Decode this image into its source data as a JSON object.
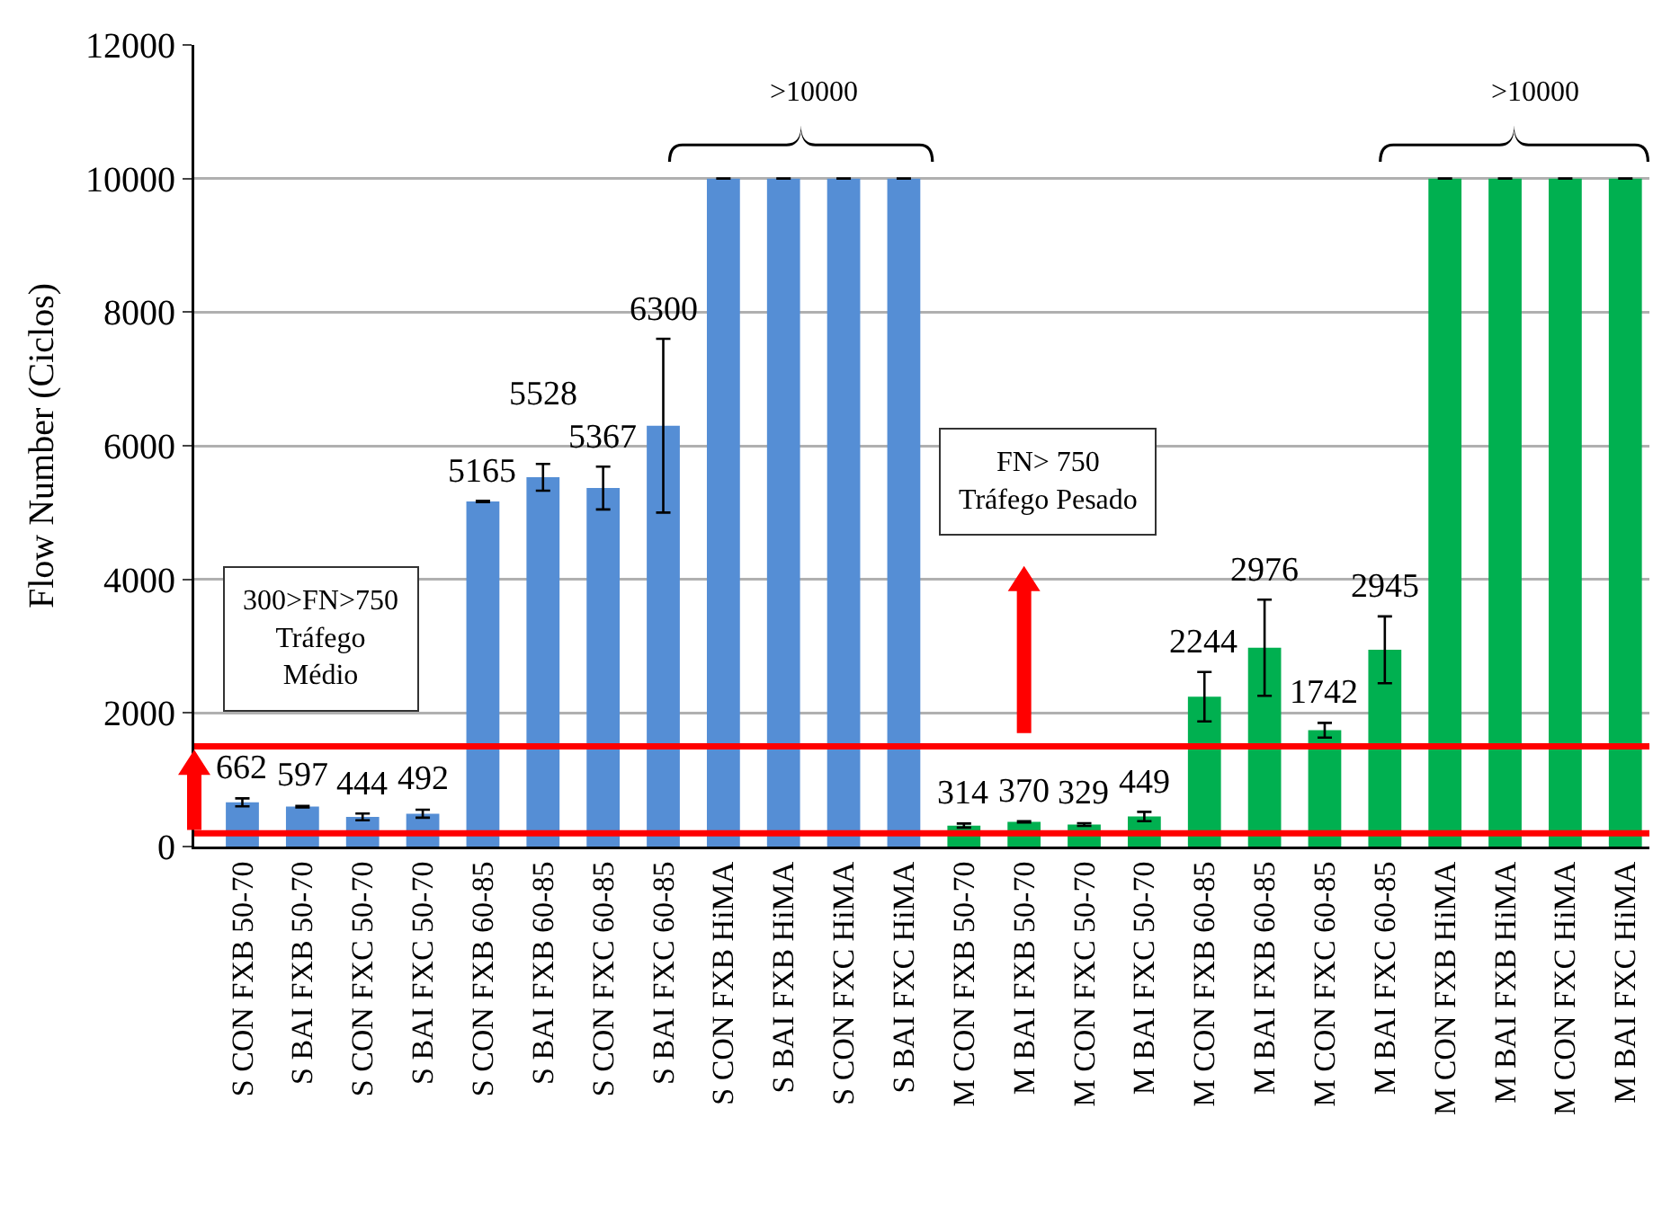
{
  "chart_data": {
    "type": "bar",
    "ylabel": "Flow Number (Ciclos)",
    "categories": [
      "S CON FXB 50-70",
      "S BAI FXB 50-70",
      "S CON FXC 50-70",
      "S BAI FXC 50-70",
      "S CON FXB 60-85",
      "S BAI FXB 60-85",
      "S CON FXC 60-85",
      "S BAI FXC 60-85",
      "S CON FXB HiMA",
      "S BAI FXB HiMA",
      "S CON FXC HiMA",
      "S BAI FXC HiMA",
      "M CON FXB 50-70",
      "M BAI FXB 50-70",
      "M CON FXC 50-70",
      "M BAI FXC 50-70",
      "M CON FXB 60-85",
      "M BAI FXB 60-85",
      "M CON FXC 60-85",
      "M BAI FXC 60-85",
      "M CON FXB HiMA",
      "M BAI FXB HiMA",
      "M CON FXC HiMA",
      "M BAI FXC HiMA"
    ],
    "values": [
      662,
      597,
      444,
      492,
      5165,
      5528,
      5367,
      6300,
      10000,
      10000,
      10000,
      10000,
      314,
      370,
      329,
      449,
      2244,
      2976,
      1742,
      2945,
      10000,
      10000,
      10000,
      10000
    ],
    "value_labels": [
      "662",
      "597",
      "444",
      "492",
      "5165",
      "5528",
      "5367",
      "6300",
      null,
      null,
      null,
      null,
      "314",
      "370",
      "329",
      "449",
      "2244",
      "2976",
      "1742",
      "2945",
      null,
      null,
      null,
      null
    ],
    "errors": [
      60,
      10,
      50,
      60,
      10,
      200,
      320,
      1300,
      null,
      null,
      null,
      null,
      30,
      10,
      20,
      70,
      370,
      720,
      110,
      500,
      null,
      null,
      null,
      null
    ],
    "colors": [
      "#558ed5",
      "#558ed5",
      "#558ed5",
      "#558ed5",
      "#558ed5",
      "#558ed5",
      "#558ed5",
      "#558ed5",
      "#558ed5",
      "#558ed5",
      "#558ed5",
      "#558ed5",
      "#00b050",
      "#00b050",
      "#00b050",
      "#00b050",
      "#00b050",
      "#00b050",
      "#00b050",
      "#00b050",
      "#00b050",
      "#00b050",
      "#00b050",
      "#00b050"
    ],
    "ylim": [
      0,
      12000
    ],
    "yticks": [
      0,
      2000,
      4000,
      6000,
      8000,
      10000,
      12000
    ],
    "grid": "y",
    "legend": false,
    "ref_lines": [
      {
        "axis": "y",
        "value": 200,
        "color": "#ff0000"
      },
      {
        "axis": "y",
        "value": 1500,
        "color": "#ff0000"
      }
    ],
    "annotations": [
      ">10000",
      ">10000",
      "300>FN>750\nTráfego\nMédio",
      "FN> 750\nTráfego Pesado"
    ]
  }
}
